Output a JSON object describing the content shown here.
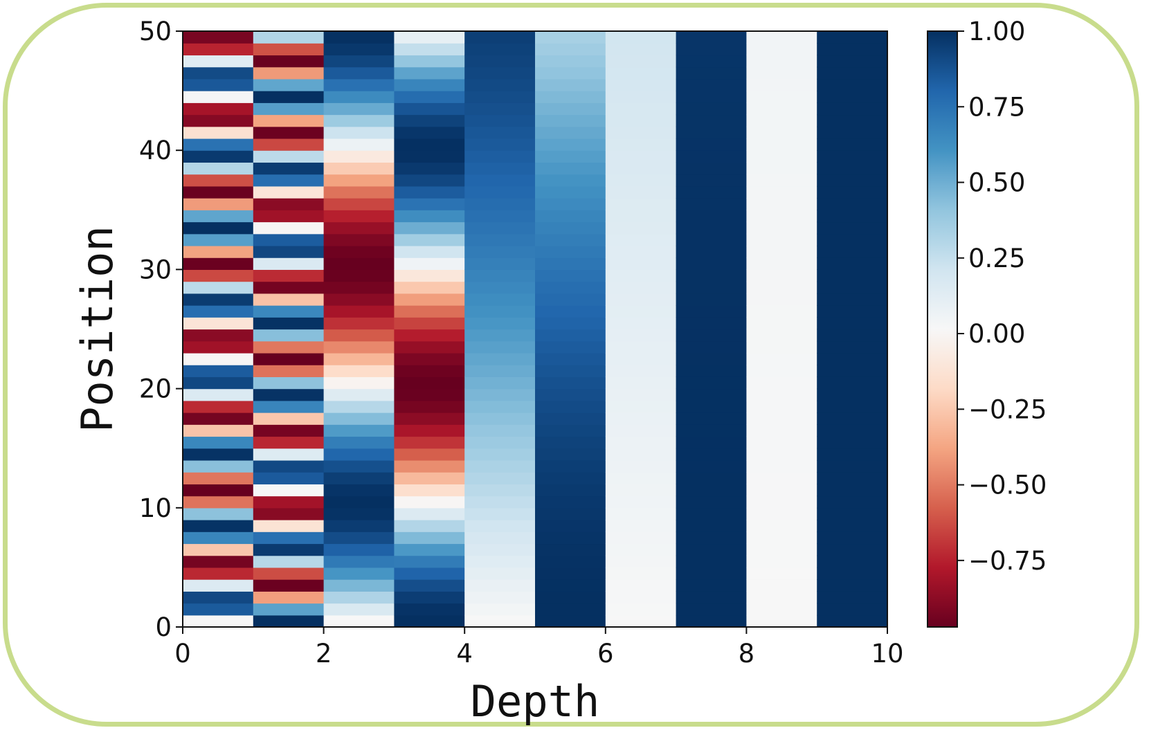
{
  "chart_data": {
    "type": "heatmap",
    "title": "",
    "xlabel": "Depth",
    "ylabel": "Position",
    "xlim": [
      0,
      10
    ],
    "ylim": [
      0,
      50
    ],
    "xticks": [
      "0",
      "2",
      "4",
      "6",
      "8",
      "10"
    ],
    "yticks": [
      "0",
      "10",
      "20",
      "30",
      "40",
      "50"
    ],
    "colormap": "RdBu",
    "colorbar": {
      "vmin": -1.0,
      "vmax": 1.0,
      "ticks": [
        "1.00",
        "0.75",
        "0.50",
        "0.25",
        "0.00",
        "−0.25",
        "−0.50",
        "−0.75"
      ]
    },
    "description": "Sinusoidal positional encoding: each depth column d and position p shown as a colored cell; even columns sin(p/10000^(d/10)), odd columns cos(p/10000^((d-1)/10))",
    "n_positions": 50,
    "n_depth": 10,
    "colors": {
      "frame": "#c8dc8c"
    }
  }
}
